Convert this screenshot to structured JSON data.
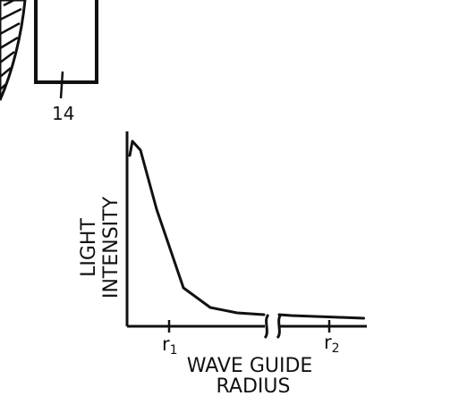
{
  "figure": {
    "reference_numeral": "14"
  },
  "chart_data": {
    "type": "line",
    "title": "",
    "ylabel_lines": [
      "LIGHT",
      "INTENSITY"
    ],
    "xlabel_lines": [
      "WAVE GUIDE",
      "RADIUS"
    ],
    "x_ticks": [
      {
        "label": "r",
        "subscript": "1"
      },
      {
        "label": "r",
        "subscript": "2"
      }
    ],
    "axis_break": true,
    "grid": false,
    "series": [
      {
        "shape": "sharp peak near zero radius, steep decay, long low tail",
        "x": [
          0.0,
          0.05,
          0.2,
          0.5,
          1.0,
          1.5,
          2.0,
          2.5,
          3.0,
          4.0,
          5.0,
          6.0
        ],
        "y": [
          0.92,
          1.0,
          0.95,
          0.62,
          0.18,
          0.07,
          0.04,
          0.03,
          0.025,
          0.02,
          0.015,
          0.01
        ]
      }
    ]
  },
  "colors": {
    "ink": "#111111",
    "background": "#ffffff"
  }
}
